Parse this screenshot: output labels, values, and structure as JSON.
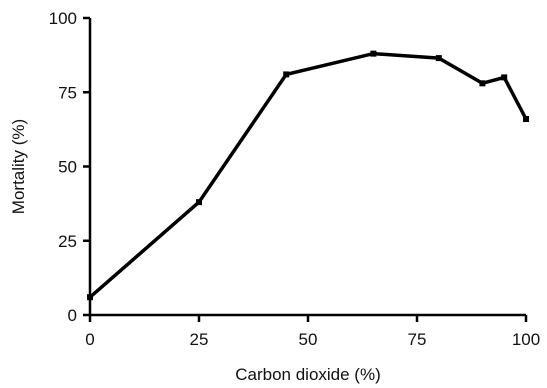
{
  "chart_data": {
    "type": "line",
    "xlabel": "Carbon dioxide (%)",
    "ylabel": "Mortality (%)",
    "xlim": [
      0,
      100
    ],
    "ylim": [
      0,
      100
    ],
    "xticks": [
      0,
      25,
      50,
      75,
      100
    ],
    "yticks": [
      0,
      25,
      50,
      75,
      100
    ],
    "grid": false,
    "series": [
      {
        "x": [
          0,
          25,
          45,
          65,
          80,
          90,
          95,
          100
        ],
        "y": [
          6,
          38,
          81,
          88,
          86.5,
          78,
          80,
          66
        ]
      }
    ],
    "line_color": "#000000"
  }
}
